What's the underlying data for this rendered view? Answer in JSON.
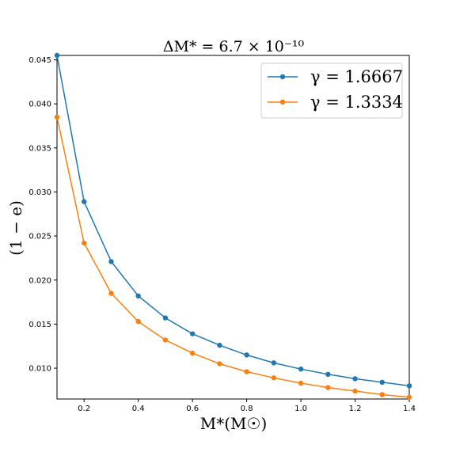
{
  "chart_data": {
    "type": "line",
    "title": "ΔM* = 6.7 × 10⁻¹⁰",
    "xlabel": "M*(M☉)",
    "ylabel": "(1 − e)",
    "xlim": [
      0.1,
      1.4
    ],
    "ylim": [
      0.0065,
      0.0455
    ],
    "x_ticks": [
      0.2,
      0.4,
      0.6,
      0.8,
      1.0,
      1.2,
      1.4
    ],
    "x_tick_labels": [
      "0.2",
      "0.4",
      "0.6",
      "0.8",
      "1.0",
      "1.2",
      "1.4"
    ],
    "y_ticks": [
      0.01,
      0.015,
      0.02,
      0.025,
      0.03,
      0.035,
      0.04,
      0.045
    ],
    "y_tick_labels": [
      "0.010",
      "0.015",
      "0.020",
      "0.025",
      "0.030",
      "0.035",
      "0.040",
      "0.045"
    ],
    "grid": false,
    "legend_position": "top-right",
    "x": [
      0.1,
      0.2,
      0.3,
      0.4,
      0.5,
      0.6,
      0.7,
      0.8,
      0.9,
      1.0,
      1.1,
      1.2,
      1.3,
      1.4
    ],
    "series": [
      {
        "name": "γ = 1.6667",
        "color": "#1f77b4",
        "values": [
          0.0455,
          0.0289,
          0.0221,
          0.0182,
          0.0157,
          0.0139,
          0.0126,
          0.0115,
          0.0106,
          0.0099,
          0.0093,
          0.0088,
          0.0084,
          0.008
        ]
      },
      {
        "name": "γ = 1.3334",
        "color": "#ff7f0e",
        "values": [
          0.0385,
          0.0242,
          0.0185,
          0.0153,
          0.0132,
          0.0117,
          0.0105,
          0.0096,
          0.0089,
          0.0083,
          0.0078,
          0.0074,
          0.007,
          0.0067
        ]
      }
    ]
  }
}
